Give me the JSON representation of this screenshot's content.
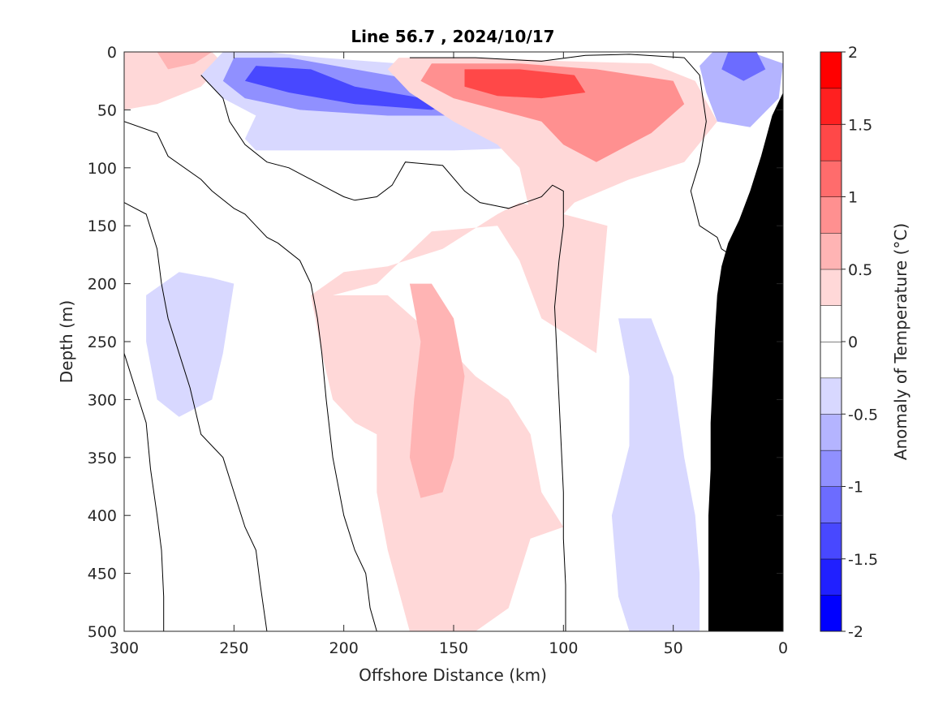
{
  "chart_data": {
    "type": "heatmap",
    "title": "Line 56.7 , 2024/10/17",
    "xlabel": "Offshore Distance (km)",
    "ylabel": "Depth (m)",
    "colorbar_label": "Anomaly of Temperature (°C)",
    "xlim": [
      300,
      0
    ],
    "ylim": [
      0,
      500
    ],
    "x_reversed": true,
    "y_reversed": true,
    "x_ticks": [
      300,
      250,
      200,
      150,
      100,
      50,
      0
    ],
    "x_tick_labels": [
      "300",
      "250",
      "200",
      "150",
      "100",
      "50",
      "0"
    ],
    "y_ticks": [
      0,
      50,
      100,
      150,
      200,
      250,
      300,
      350,
      400,
      450,
      500
    ],
    "y_tick_labels": [
      "0",
      "50",
      "100",
      "150",
      "200",
      "250",
      "300",
      "350",
      "400",
      "450",
      "500"
    ],
    "colorbar": {
      "range": [
        -2,
        2
      ],
      "levels": [
        -2,
        -1.75,
        -1.5,
        -1.25,
        -1,
        -0.75,
        -0.5,
        -0.25,
        0,
        0.25,
        0.5,
        0.75,
        1,
        1.25,
        1.5,
        1.75,
        2
      ],
      "ticks": [
        2,
        1.5,
        1,
        0.5,
        0,
        -0.5,
        -1,
        -1.5,
        -2
      ],
      "tick_labels": [
        "2",
        "1.5",
        "1",
        "0.5",
        "0",
        "-0.5",
        "-1",
        "-1.5",
        "-2"
      ],
      "colors": [
        "#0000ff",
        "#2020ff",
        "#4848ff",
        "#6c6cff",
        "#9090ff",
        "#b4b4ff",
        "#d8d8ff",
        "#ffffff",
        "#ffffff",
        "#ffd8d8",
        "#ffb4b4",
        "#ff9090",
        "#ff6c6c",
        "#ff4848",
        "#ff2020",
        "#ff0000"
      ]
    },
    "anomaly_regions": [
      {
        "name": "surface-warm-offshore",
        "value": 0.4,
        "polygon": [
          [
            300,
            0
          ],
          [
            260,
            0
          ],
          [
            255,
            10
          ],
          [
            265,
            30
          ],
          [
            285,
            45
          ],
          [
            300,
            50
          ]
        ]
      },
      {
        "name": "surface-warm-offshore-core",
        "value": 0.6,
        "polygon": [
          [
            285,
            0
          ],
          [
            260,
            0
          ],
          [
            268,
            10
          ],
          [
            280,
            15
          ]
        ]
      },
      {
        "name": "upper-cold-offshore",
        "value": -0.4,
        "polygon": [
          [
            255,
            0
          ],
          [
            235,
            0
          ],
          [
            210,
            5
          ],
          [
            175,
            10
          ],
          [
            150,
            18
          ],
          [
            120,
            20
          ],
          [
            100,
            35
          ],
          [
            95,
            60
          ],
          [
            105,
            82
          ],
          [
            150,
            85
          ],
          [
            200,
            85
          ],
          [
            240,
            85
          ],
          [
            245,
            75
          ],
          [
            240,
            55
          ],
          [
            255,
            40
          ],
          [
            265,
            20
          ]
        ]
      },
      {
        "name": "upper-cold-offshore-mid",
        "value": -0.8,
        "polygon": [
          [
            250,
            5
          ],
          [
            225,
            5
          ],
          [
            195,
            15
          ],
          [
            165,
            25
          ],
          [
            130,
            32
          ],
          [
            118,
            45
          ],
          [
            140,
            55
          ],
          [
            180,
            55
          ],
          [
            220,
            50
          ],
          [
            245,
            40
          ],
          [
            255,
            25
          ]
        ]
      },
      {
        "name": "upper-cold-offshore-core",
        "value": -1.3,
        "polygon": [
          [
            240,
            12
          ],
          [
            215,
            15
          ],
          [
            195,
            30
          ],
          [
            170,
            38
          ],
          [
            150,
            45
          ],
          [
            160,
            50
          ],
          [
            195,
            45
          ],
          [
            225,
            35
          ],
          [
            245,
            25
          ]
        ]
      },
      {
        "name": "upper-warm-nearshore",
        "value": 0.4,
        "polygon": [
          [
            175,
            5
          ],
          [
            140,
            5
          ],
          [
            100,
            8
          ],
          [
            60,
            10
          ],
          [
            40,
            25
          ],
          [
            30,
            60
          ],
          [
            45,
            95
          ],
          [
            70,
            110
          ],
          [
            95,
            130
          ],
          [
            100,
            140
          ],
          [
            115,
            140
          ],
          [
            120,
            100
          ],
          [
            130,
            80
          ],
          [
            150,
            60
          ],
          [
            170,
            35
          ],
          [
            180,
            15
          ]
        ]
      },
      {
        "name": "upper-warm-nearshore-mid",
        "value": 0.9,
        "polygon": [
          [
            160,
            10
          ],
          [
            120,
            10
          ],
          [
            85,
            15
          ],
          [
            50,
            25
          ],
          [
            45,
            45
          ],
          [
            60,
            70
          ],
          [
            85,
            95
          ],
          [
            100,
            80
          ],
          [
            110,
            60
          ],
          [
            130,
            50
          ],
          [
            150,
            40
          ],
          [
            165,
            25
          ]
        ]
      },
      {
        "name": "upper-warm-nearshore-core",
        "value": 1.3,
        "polygon": [
          [
            145,
            15
          ],
          [
            120,
            15
          ],
          [
            95,
            20
          ],
          [
            90,
            35
          ],
          [
            110,
            40
          ],
          [
            130,
            38
          ],
          [
            145,
            30
          ]
        ]
      },
      {
        "name": "coastal-surface-cold",
        "value": -0.6,
        "polygon": [
          [
            32,
            0
          ],
          [
            15,
            0
          ],
          [
            0,
            10
          ],
          [
            2,
            40
          ],
          [
            15,
            65
          ],
          [
            30,
            60
          ],
          [
            35,
            35
          ],
          [
            38,
            12
          ]
        ]
      },
      {
        "name": "coastal-surface-cold-core",
        "value": -1.1,
        "polygon": [
          [
            25,
            0
          ],
          [
            12,
            0
          ],
          [
            8,
            15
          ],
          [
            18,
            25
          ],
          [
            28,
            15
          ]
        ]
      },
      {
        "name": "deep-cold-offshore",
        "value": -0.4,
        "polygon": [
          [
            260,
            195
          ],
          [
            250,
            200
          ],
          [
            255,
            260
          ],
          [
            260,
            300
          ],
          [
            275,
            315
          ],
          [
            285,
            300
          ],
          [
            290,
            250
          ],
          [
            290,
            210
          ],
          [
            275,
            190
          ]
        ]
      },
      {
        "name": "deep-warm-core-region",
        "value": 0.4,
        "polygon": [
          [
            205,
            210
          ],
          [
            185,
            200
          ],
          [
            160,
            155
          ],
          [
            130,
            150
          ],
          [
            120,
            180
          ],
          [
            110,
            230
          ],
          [
            85,
            260
          ],
          [
            80,
            150
          ],
          [
            120,
            130
          ],
          [
            130,
            140
          ],
          [
            155,
            170
          ],
          [
            180,
            185
          ],
          [
            200,
            190
          ],
          [
            215,
            210
          ],
          [
            210,
            260
          ],
          [
            205,
            300
          ],
          [
            195,
            320
          ],
          [
            185,
            330
          ],
          [
            185,
            380
          ],
          [
            180,
            430
          ],
          [
            170,
            500
          ],
          [
            140,
            500
          ],
          [
            125,
            480
          ],
          [
            115,
            420
          ],
          [
            100,
            410
          ],
          [
            110,
            380
          ],
          [
            115,
            330
          ],
          [
            125,
            300
          ],
          [
            140,
            280
          ],
          [
            150,
            260
          ],
          [
            180,
            210
          ]
        ]
      },
      {
        "name": "deep-warm-core",
        "value": 0.7,
        "polygon": [
          [
            170,
            200
          ],
          [
            160,
            200
          ],
          [
            150,
            230
          ],
          [
            145,
            280
          ],
          [
            150,
            350
          ],
          [
            155,
            380
          ],
          [
            165,
            385
          ],
          [
            170,
            350
          ],
          [
            168,
            300
          ],
          [
            165,
            250
          ]
        ]
      },
      {
        "name": "deep-cold-nearshore",
        "value": -0.4,
        "polygon": [
          [
            75,
            230
          ],
          [
            60,
            230
          ],
          [
            50,
            280
          ],
          [
            45,
            350
          ],
          [
            40,
            400
          ],
          [
            38,
            450
          ],
          [
            38,
            500
          ],
          [
            70,
            500
          ],
          [
            75,
            470
          ],
          [
            78,
            400
          ],
          [
            70,
            340
          ],
          [
            70,
            280
          ]
        ]
      }
    ],
    "zero_contours": [
      [
        [
          300,
          60
        ],
        [
          285,
          70
        ],
        [
          280,
          90
        ],
        [
          265,
          110
        ],
        [
          260,
          120
        ],
        [
          250,
          135
        ],
        [
          245,
          140
        ],
        [
          240,
          150
        ],
        [
          235,
          160
        ],
        [
          230,
          165
        ],
        [
          220,
          180
        ],
        [
          215,
          200
        ],
        [
          212,
          230
        ],
        [
          210,
          260
        ],
        [
          208,
          300
        ],
        [
          205,
          350
        ],
        [
          200,
          400
        ],
        [
          195,
          430
        ],
        [
          190,
          450
        ],
        [
          188,
          480
        ],
        [
          185,
          500
        ]
      ],
      [
        [
          300,
          130
        ],
        [
          290,
          140
        ],
        [
          285,
          170
        ],
        [
          283,
          200
        ],
        [
          280,
          230
        ],
        [
          275,
          260
        ],
        [
          270,
          290
        ],
        [
          265,
          330
        ],
        [
          255,
          350
        ],
        [
          250,
          380
        ],
        [
          245,
          410
        ],
        [
          240,
          430
        ],
        [
          238,
          460
        ],
        [
          235,
          500
        ]
      ],
      [
        [
          300,
          260
        ],
        [
          295,
          290
        ],
        [
          290,
          320
        ],
        [
          288,
          360
        ],
        [
          285,
          400
        ],
        [
          283,
          430
        ],
        [
          282,
          470
        ],
        [
          282,
          500
        ]
      ],
      [
        [
          265,
          20
        ],
        [
          255,
          40
        ],
        [
          252,
          60
        ],
        [
          245,
          80
        ],
        [
          235,
          95
        ],
        [
          225,
          100
        ],
        [
          215,
          110
        ],
        [
          210,
          115
        ],
        [
          205,
          120
        ],
        [
          200,
          125
        ],
        [
          195,
          128
        ],
        [
          185,
          125
        ],
        [
          178,
          115
        ],
        [
          172,
          95
        ],
        [
          155,
          98
        ],
        [
          145,
          120
        ],
        [
          138,
          130
        ],
        [
          125,
          135
        ],
        [
          110,
          125
        ],
        [
          105,
          115
        ],
        [
          100,
          120
        ],
        [
          100,
          150
        ],
        [
          102,
          180
        ],
        [
          104,
          220
        ],
        [
          103,
          260
        ],
        [
          102,
          300
        ],
        [
          101,
          340
        ],
        [
          100,
          380
        ],
        [
          100,
          420
        ],
        [
          99,
          460
        ],
        [
          99,
          500
        ]
      ],
      [
        [
          170,
          5
        ],
        [
          140,
          5
        ],
        [
          110,
          8
        ],
        [
          90,
          3
        ],
        [
          70,
          2
        ],
        [
          45,
          5
        ],
        [
          38,
          20
        ],
        [
          35,
          60
        ],
        [
          38,
          95
        ],
        [
          42,
          120
        ],
        [
          38,
          150
        ],
        [
          30,
          160
        ],
        [
          28,
          170
        ],
        [
          20,
          180
        ],
        [
          12,
          200
        ],
        [
          10,
          240
        ],
        [
          5,
          260
        ],
        [
          4,
          300
        ],
        [
          3,
          340
        ],
        [
          2,
          380
        ],
        [
          1,
          420
        ],
        [
          1,
          460
        ],
        [
          0,
          500
        ]
      ]
    ],
    "land_polygon": [
      [
        0,
        35
      ],
      [
        5,
        55
      ],
      [
        10,
        90
      ],
      [
        15,
        120
      ],
      [
        20,
        145
      ],
      [
        25,
        165
      ],
      [
        28,
        185
      ],
      [
        30,
        210
      ],
      [
        31,
        240
      ],
      [
        32,
        280
      ],
      [
        33,
        320
      ],
      [
        33,
        360
      ],
      [
        34,
        400
      ],
      [
        34,
        440
      ],
      [
        34,
        480
      ],
      [
        34,
        500
      ],
      [
        0,
        500
      ]
    ]
  }
}
